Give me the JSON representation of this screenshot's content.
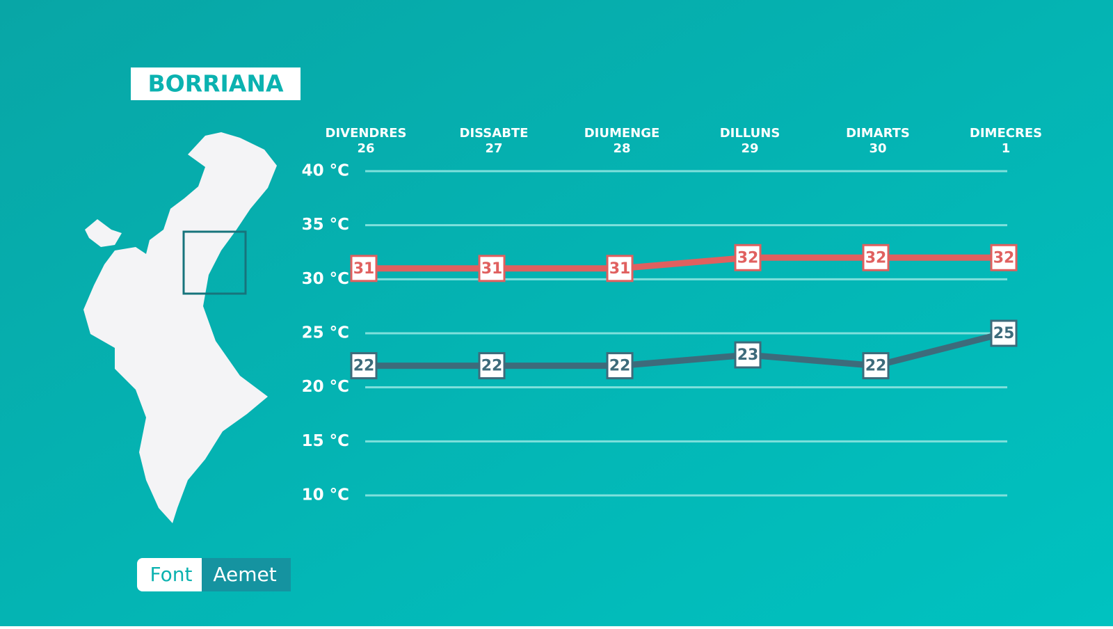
{
  "title": "BORRIANA",
  "source": {
    "label": "Font",
    "name": "Aemet"
  },
  "chart_data": {
    "type": "line",
    "categories": [
      "DIVENDRES",
      "DISSABTE",
      "DIUMENGE",
      "DILLUNS",
      "DIMARTS",
      "DIMECRES"
    ],
    "dates": [
      "26",
      "27",
      "28",
      "29",
      "30",
      "1"
    ],
    "series": [
      {
        "color": "#e0605f",
        "values": [
          31,
          31,
          31,
          32,
          32,
          32
        ]
      },
      {
        "color": "#3d6b7b",
        "values": [
          22,
          22,
          22,
          23,
          22,
          25
        ]
      }
    ],
    "ylim": [
      10,
      40
    ],
    "yticks": [
      {
        "value": 10,
        "label": "10 °C"
      },
      {
        "value": 15,
        "label": "15 °C"
      },
      {
        "value": 20,
        "label": "20 °C"
      },
      {
        "value": 25,
        "label": "25 °C"
      },
      {
        "value": 30,
        "label": "30 °C"
      },
      {
        "value": 35,
        "label": "35 °C"
      },
      {
        "value": 40,
        "label": "40 °C"
      }
    ],
    "grid": true
  }
}
